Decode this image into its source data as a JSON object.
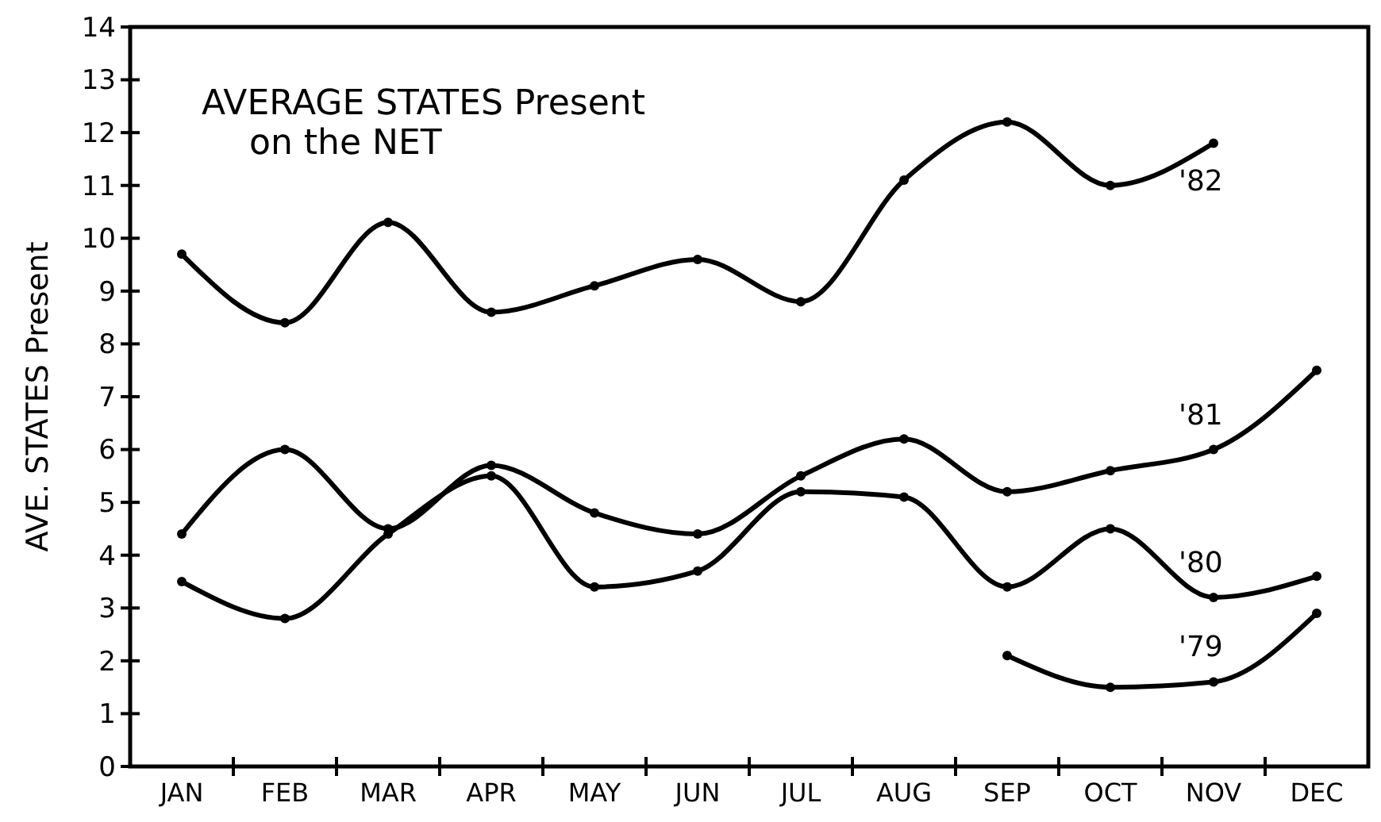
{
  "chart_data": {
    "type": "line",
    "title": "AVERAGE STATES Present",
    "subtitle": "on the NET",
    "ylabel": "AVE. STATES Present",
    "categories": [
      "JAN",
      "FEB",
      "MAR",
      "APR",
      "MAY",
      "JUN",
      "JUL",
      "AUG",
      "SEP",
      "OCT",
      "NOV",
      "DEC"
    ],
    "series": [
      {
        "name": "'82",
        "color": "#000000",
        "values": [
          9.7,
          8.4,
          10.3,
          8.6,
          9.1,
          9.6,
          8.8,
          11.1,
          12.2,
          11.0,
          11.8,
          null
        ]
      },
      {
        "name": "'81",
        "color": "#000000",
        "values": [
          4.4,
          6.0,
          4.5,
          5.7,
          4.8,
          4.4,
          5.5,
          6.2,
          5.2,
          5.6,
          6.0,
          7.5
        ]
      },
      {
        "name": "'80",
        "color": "#000000",
        "values": [
          3.5,
          2.8,
          4.4,
          5.5,
          3.4,
          3.7,
          5.2,
          5.1,
          3.4,
          4.5,
          3.2,
          3.6
        ]
      },
      {
        "name": "'79",
        "color": "#000000",
        "values": [
          null,
          null,
          null,
          null,
          null,
          null,
          null,
          null,
          2.1,
          1.5,
          1.6,
          2.9
        ]
      }
    ],
    "ylim": [
      0,
      14
    ],
    "yticks": [
      0,
      1,
      2,
      3,
      4,
      5,
      6,
      7,
      8,
      9,
      10,
      11,
      12,
      13,
      14
    ],
    "grid": false,
    "marker": "circle",
    "line_style": "solid"
  }
}
